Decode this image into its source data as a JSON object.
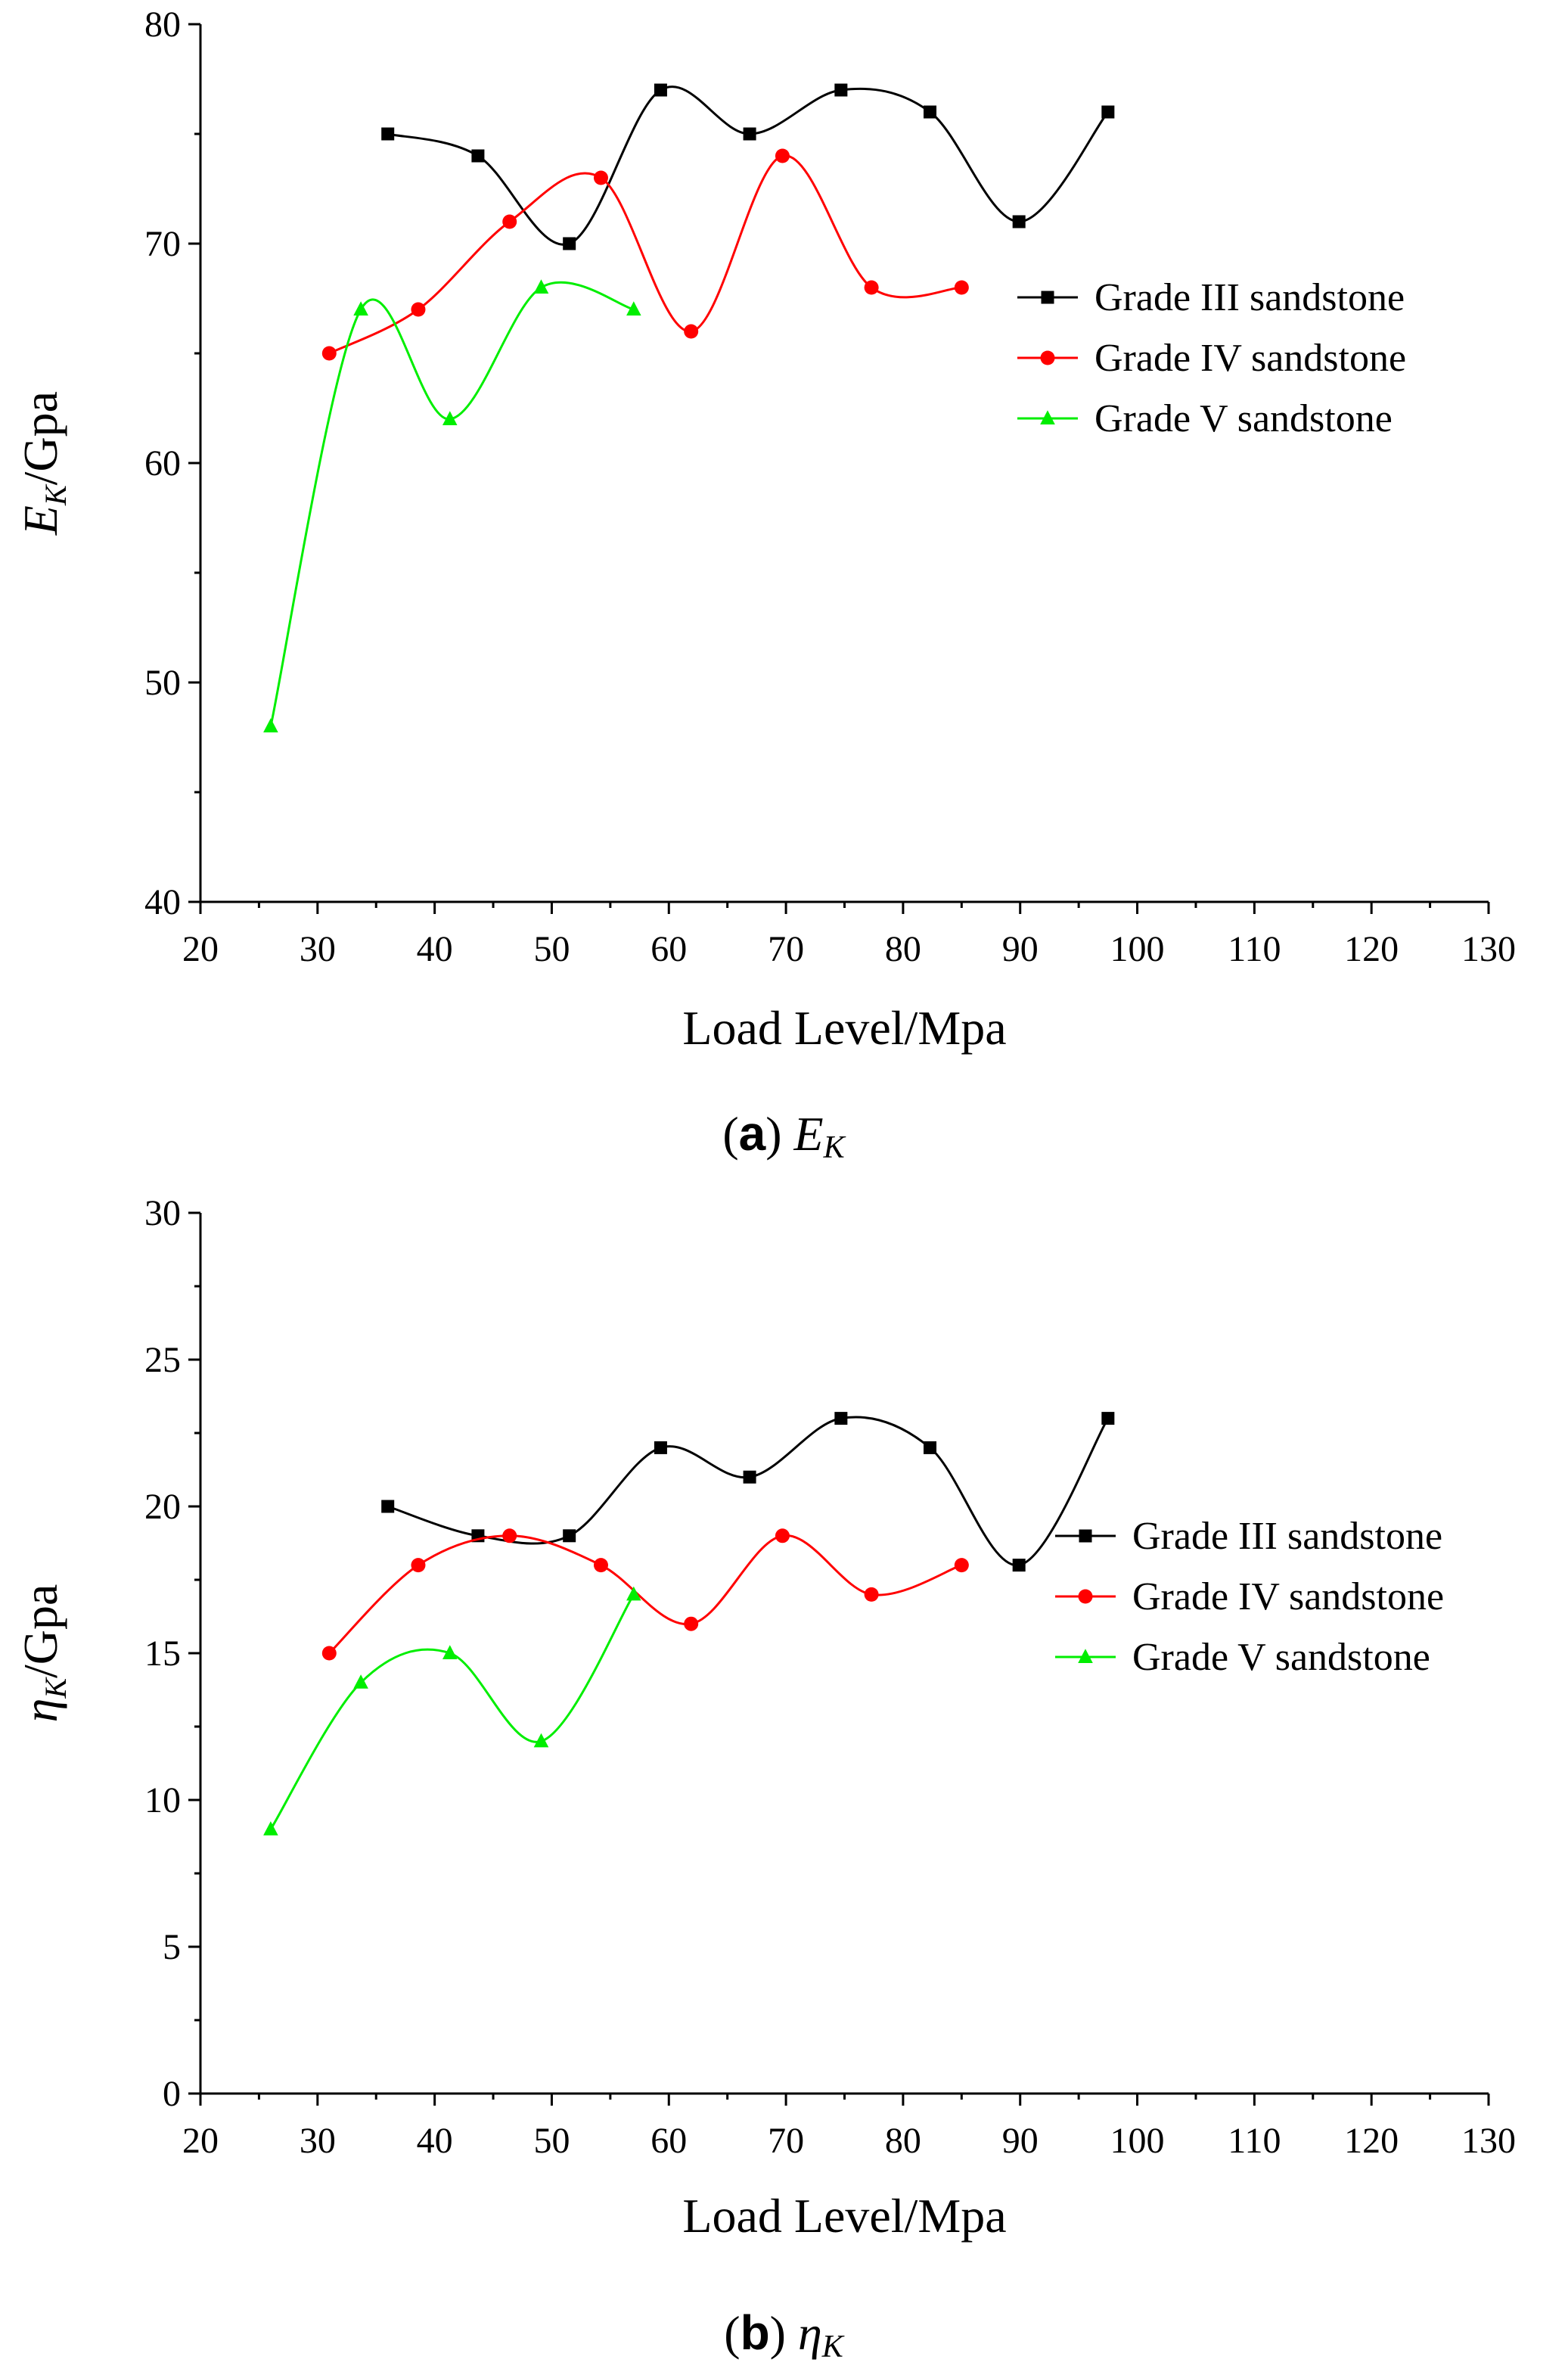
{
  "chart_data": [
    {
      "type": "scatter",
      "panel": "a",
      "caption": {
        "letter": "a",
        "symbol": "E",
        "subscript": "K"
      },
      "xlabel": "Load Level/Mpa",
      "ylabel": {
        "symbol": "E",
        "subscript": "K",
        "unit": "/Gpa"
      },
      "xlim": [
        20,
        130
      ],
      "ylim": [
        40,
        80
      ],
      "xticks": [
        20,
        30,
        40,
        50,
        60,
        70,
        80,
        90,
        100,
        110,
        120,
        130
      ],
      "yticks": [
        40,
        50,
        60,
        70,
        80
      ],
      "legend_position": "right",
      "series": [
        {
          "name": "Grade III sandstone",
          "color": "#000000",
          "marker": "square",
          "x": [
            36,
            43.7,
            51.5,
            59.3,
            66.9,
            74.7,
            82.3,
            89.9,
            97.5
          ],
          "y": [
            75,
            74,
            70,
            77,
            75,
            77,
            76,
            71,
            76
          ]
        },
        {
          "name": "Grade IV sandstone",
          "color": "#ff0000",
          "marker": "circle",
          "x": [
            31,
            38.6,
            46.4,
            54.2,
            61.9,
            69.7,
            77.3,
            85
          ],
          "y": [
            65,
            67,
            71,
            73,
            66,
            74,
            68,
            68
          ]
        },
        {
          "name": "Grade V sandstone",
          "color": "#00ee00",
          "marker": "triangle",
          "x": [
            26,
            33.7,
            41.3,
            49.1,
            57
          ],
          "y": [
            48,
            67,
            62,
            68,
            67
          ]
        }
      ]
    },
    {
      "type": "scatter",
      "panel": "b",
      "caption": {
        "letter": "b",
        "symbol": "η",
        "subscript": "K"
      },
      "xlabel": "Load Level/Mpa",
      "ylabel": {
        "symbol": "η",
        "subscript": "K",
        "unit": "/Gpa"
      },
      "xlim": [
        20,
        130
      ],
      "ylim": [
        0,
        30
      ],
      "xticks": [
        20,
        30,
        40,
        50,
        60,
        70,
        80,
        90,
        100,
        110,
        120,
        130
      ],
      "yticks": [
        0,
        5,
        10,
        15,
        20,
        25,
        30
      ],
      "legend_position": "right",
      "series": [
        {
          "name": "Grade III sandstone",
          "color": "#000000",
          "marker": "square",
          "x": [
            36,
            43.7,
            51.5,
            59.3,
            66.9,
            74.7,
            82.3,
            89.9,
            97.5
          ],
          "y": [
            20,
            19,
            19,
            22,
            21,
            23,
            22,
            18,
            23
          ]
        },
        {
          "name": "Grade IV sandstone",
          "color": "#ff0000",
          "marker": "circle",
          "x": [
            31,
            38.6,
            46.4,
            54.2,
            61.9,
            69.7,
            77.3,
            85
          ],
          "y": [
            15,
            18,
            19,
            18,
            16,
            19,
            17,
            18
          ]
        },
        {
          "name": "Grade V sandstone",
          "color": "#00ee00",
          "marker": "triangle",
          "x": [
            26,
            33.7,
            41.3,
            49.1,
            57
          ],
          "y": [
            9,
            14,
            15,
            12,
            17
          ]
        }
      ]
    }
  ]
}
